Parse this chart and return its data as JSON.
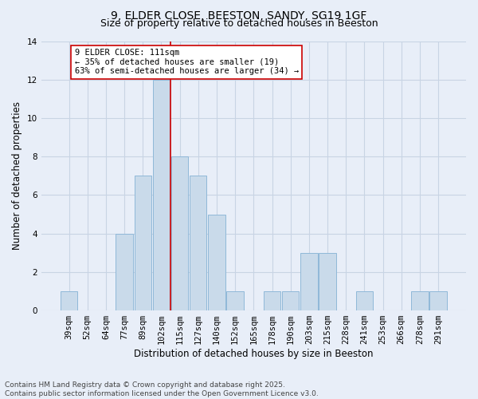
{
  "title_line1": "9, ELDER CLOSE, BEESTON, SANDY, SG19 1GF",
  "title_line2": "Size of property relative to detached houses in Beeston",
  "xlabel": "Distribution of detached houses by size in Beeston",
  "ylabel": "Number of detached properties",
  "categories": [
    "39sqm",
    "52sqm",
    "64sqm",
    "77sqm",
    "89sqm",
    "102sqm",
    "115sqm",
    "127sqm",
    "140sqm",
    "152sqm",
    "165sqm",
    "178sqm",
    "190sqm",
    "203sqm",
    "215sqm",
    "228sqm",
    "241sqm",
    "253sqm",
    "266sqm",
    "278sqm",
    "291sqm"
  ],
  "values": [
    1,
    0,
    0,
    4,
    7,
    12,
    8,
    7,
    5,
    1,
    0,
    1,
    1,
    3,
    3,
    0,
    1,
    0,
    0,
    1,
    1
  ],
  "bar_color": "#c9daea",
  "bar_edgecolor": "#8fb8d8",
  "vline_x": 5.5,
  "vline_color": "#cc0000",
  "annotation_text": "9 ELDER CLOSE: 111sqm\n← 35% of detached houses are smaller (19)\n63% of semi-detached houses are larger (34) →",
  "annotation_box_color": "#ffffff",
  "annotation_box_edgecolor": "#cc0000",
  "ylim": [
    0,
    14
  ],
  "yticks": [
    0,
    2,
    4,
    6,
    8,
    10,
    12,
    14
  ],
  "grid_color": "#c8d4e4",
  "background_color": "#e8eef8",
  "footer": "Contains HM Land Registry data © Crown copyright and database right 2025.\nContains public sector information licensed under the Open Government Licence v3.0.",
  "title_fontsize": 10,
  "subtitle_fontsize": 9,
  "xlabel_fontsize": 8.5,
  "ylabel_fontsize": 8.5,
  "tick_fontsize": 7.5,
  "annotation_fontsize": 7.5,
  "footer_fontsize": 6.5
}
